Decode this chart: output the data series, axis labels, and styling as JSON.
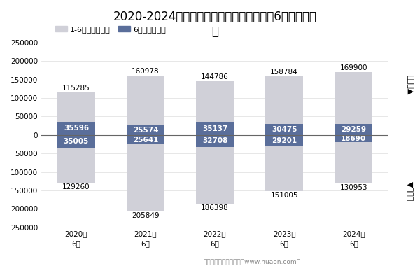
{
  "title": "2020-2024年马鞍山市商品收发货人所在地6月进、出口\n额",
  "years": [
    "2020年\n6月",
    "2021年\n6月",
    "2022年\n6月",
    "2023年\n6月",
    "2024年\n6月"
  ],
  "export_cumulative": [
    115285,
    160978,
    144786,
    158784,
    169900
  ],
  "export_monthly": [
    35596,
    25574,
    35137,
    30475,
    29259
  ],
  "import_cumulative": [
    -129260,
    -205849,
    -186398,
    -151005,
    -130953
  ],
  "import_monthly": [
    -35005,
    -25641,
    -32708,
    -29201,
    -18690
  ],
  "legend_labels": [
    "1-6月（万美元）",
    "6月（万美元）"
  ],
  "color_cumulative": "#d0d0d8",
  "color_monthly": "#5a6e9a",
  "ylim": [
    -250000,
    250000
  ],
  "yticks": [
    -250000,
    -200000,
    -150000,
    -100000,
    -50000,
    0,
    50000,
    100000,
    150000,
    200000,
    250000
  ],
  "ylabel_top": "出口额▲",
  "ylabel_bottom": "▼进口额",
  "footnote": "制图：华经产业研究院（www.huaon.com）",
  "background_color": "#ffffff",
  "title_fontsize": 12,
  "label_fontsize": 7.5,
  "tick_fontsize": 7.5
}
